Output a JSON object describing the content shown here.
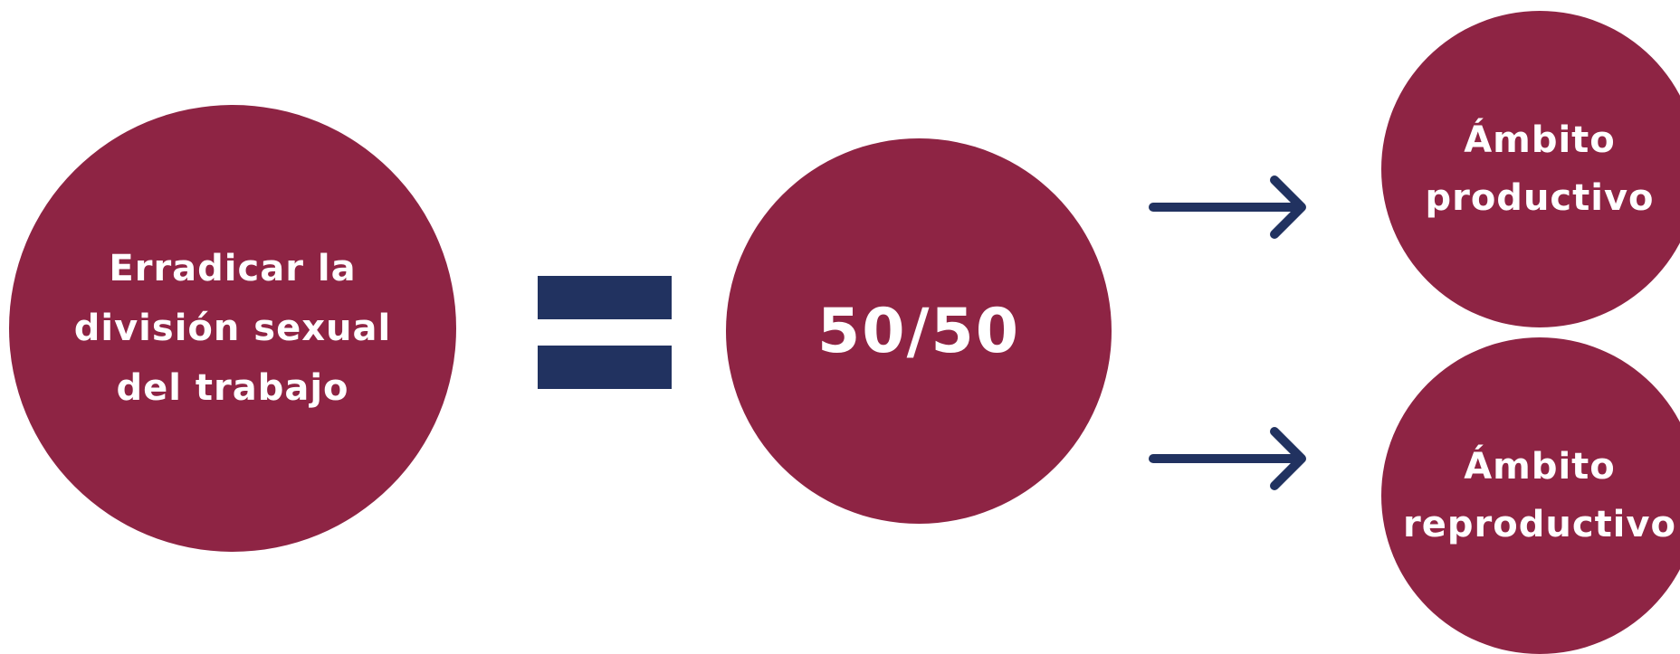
{
  "colors": {
    "circle_fill": "#8e2444",
    "accent_navy": "#213260",
    "text_on_circle": "#ffffff",
    "background": "#ffffff"
  },
  "nodes": {
    "main": {
      "label": "Erradicar la\ndivisión sexual\ndel trabajo"
    },
    "ratio": {
      "label": "50/50"
    },
    "productive": {
      "label": "Ámbito\nproductivo"
    },
    "reproductive": {
      "label": "Ámbito\nreproductivo"
    }
  },
  "connectors": {
    "equals": {
      "symbol": "equals-sign"
    },
    "arrows": [
      {
        "from": "ratio",
        "to": "productive",
        "icon": "arrow-right-icon"
      },
      {
        "from": "ratio",
        "to": "reproductive",
        "icon": "arrow-right-icon"
      }
    ]
  }
}
